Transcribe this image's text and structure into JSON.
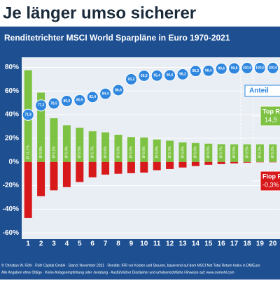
{
  "chart_data": {
    "type": "bar",
    "title": "Je länger umso sicherer",
    "subtitle": "Renditetrichter MSCI World Sparpläne in Euro 1970-2021",
    "categories": [
      "1",
      "2",
      "3",
      "4",
      "5",
      "6",
      "7",
      "8",
      "9",
      "10",
      "11",
      "12",
      "13",
      "14",
      "15",
      "16",
      "17",
      "18",
      "19",
      "20"
    ],
    "series": [
      {
        "color": "#7dc242",
        "values": [
          77.6,
          58.7,
          37,
          31,
          29,
          26,
          25,
          23,
          21,
          20.7,
          19,
          18,
          16.6,
          16,
          15.4,
          15,
          14.9,
          14.9,
          14.9,
          14.9
        ],
        "avg_labels": [
          "Ø 11,1%",
          "Ø 8,8%",
          "Ø 8,1%",
          "Ø 8,4%",
          "Ø 8,5%",
          "Ø 8,7%",
          "Ø 8,6%",
          "Ø 8,6%",
          "Ø 8,6%",
          "Ø 8,6%",
          "Ø 8,6%",
          "Ø 8,7%",
          "Ø 8,6%",
          "Ø 8,6%",
          "Ø 8,6%",
          "Ø 8,7%",
          "Ø 8,5%",
          "Ø 8,5%",
          "Ø 8,2%",
          "Ø 8,2%"
        ]
      },
      {
        "color": "#d7191c",
        "values": [
          -47.4,
          -29,
          -24,
          -21.3,
          -17,
          -13,
          -10.7,
          -10,
          -9.5,
          -9,
          -7,
          -6,
          -4.7,
          -3.5,
          -2.4,
          -1.8,
          -1.2,
          -0.6,
          -0.3,
          -0.3
        ]
      },
      {
        "color": "#2e86de",
        "axis": "y2",
        "values": [
          71.6,
          77.3,
          78.5,
          80.0,
          80.5,
          82.4,
          84.4,
          86.6,
          93.2,
          95.3,
          95.4,
          95.6,
          96.2,
          98.2,
          98.4,
          99.6,
          99.8,
          100.0,
          100.0,
          100.0
        ],
        "value_labels": [
          "71,6",
          "77,3",
          "78,5",
          "80,0",
          "80,5",
          "82,4",
          "84,4",
          "86,6",
          "93,2",
          "95,3",
          "95,4",
          "95,6",
          "96,2",
          "98,2",
          "98,4",
          "99,6",
          "99,8",
          "100,0",
          "100,0",
          "100,0"
        ]
      }
    ],
    "ylim": [
      -64,
      85
    ],
    "y2lim": [
      -3,
      104
    ],
    "yticks": [
      {
        "value": -60,
        "label": "-60%"
      },
      {
        "value": -40,
        "label": "-40%"
      },
      {
        "value": -20,
        "label": "-20%"
      },
      {
        "value": 0,
        "label": "0%"
      },
      {
        "value": 20,
        "label": "20%"
      },
      {
        "value": 40,
        "label": "40%"
      },
      {
        "value": 60,
        "label": "60%"
      },
      {
        "value": 80,
        "label": "80%"
      }
    ],
    "grid": true,
    "callouts": {
      "share": "Anteil",
      "top": [
        "Top R",
        "14,9"
      ],
      "flop": [
        "Flop R",
        "-0,3%"
      ]
    },
    "footer": [
      "© Christian W. Röhl · Röhl Capital GmbH · Stand: November 2021 · Rendite: IRR vor Kosten und Steuern, basierend auf dem MSCI Net Total Return Index in DM/Euro",
      "Alle Angaben ohne Obligo · Keine Anlageempfehlung oder -beratung · Ausführlicher Disclaimer und urheberrechtliche Hinweise auf: www.cwroehl.com"
    ]
  }
}
